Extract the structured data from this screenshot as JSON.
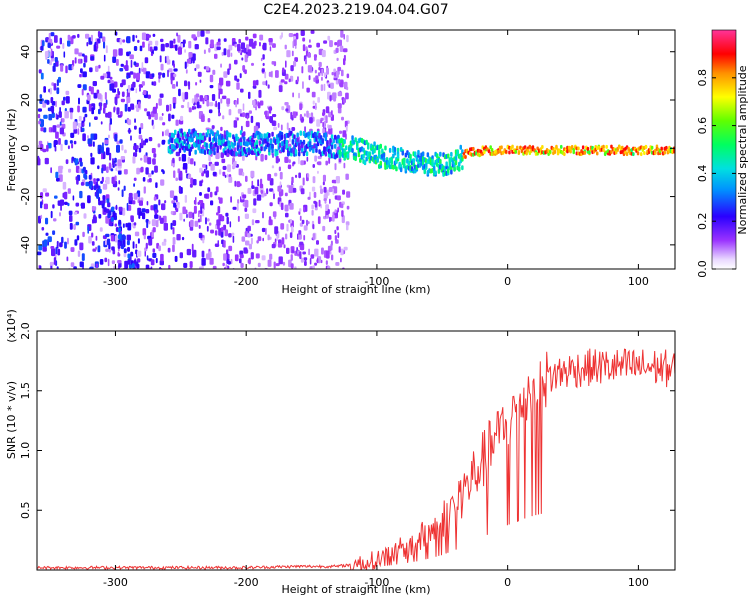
{
  "title": "C2E4.2023.219.04.04.G07",
  "colors": {
    "snr_line": "#ee3333",
    "spectrogram_low": "#cc99ff",
    "spectrogram_mid": "#33ddcc",
    "spectrogram_high": "#ff2200"
  },
  "chart_data": [
    {
      "type": "heatmap",
      "xlabel": "Height of straight line (km)",
      "ylabel": "Frequency (Hz)",
      "xlim": [
        -360,
        128
      ],
      "ylim": [
        -50,
        49
      ],
      "xticks": [
        -300,
        -200,
        -100,
        0,
        100
      ],
      "yticks": [
        -40,
        -20,
        0,
        20,
        40
      ],
      "colorbar": {
        "label": "Normalized spectral amplitude",
        "range": [
          0,
          1
        ],
        "ticks": [
          0.0,
          0.2,
          0.4,
          0.6,
          0.8
        ],
        "colormap": "rainbow"
      },
      "ridge_center_hz": [
        [
          -250,
          4
        ],
        [
          -200,
          3
        ],
        [
          -150,
          3
        ],
        [
          -120,
          1
        ],
        [
          -100,
          -2
        ],
        [
          -80,
          -4
        ],
        [
          -60,
          -6
        ],
        [
          -45,
          -5
        ],
        [
          -30,
          -1
        ],
        [
          -15,
          0
        ],
        [
          0,
          0
        ],
        [
          50,
          0
        ],
        [
          100,
          0
        ],
        [
          128,
          0
        ]
      ],
      "streak": [
        [
          -330,
          -4
        ],
        [
          -300,
          -30
        ],
        [
          -285,
          -50
        ]
      ],
      "noise_region_x": [
        -360,
        -123
      ]
    },
    {
      "type": "line",
      "xlabel": "Height of straight line (km)",
      "ylabel": "SNR (10 * v/v)",
      "y_multiplier": "(x10⁴)",
      "xlim": [
        -360,
        128
      ],
      "ylim": [
        0,
        2.0
      ],
      "xticks": [
        -300,
        -200,
        -100,
        0,
        100
      ],
      "yticks": [
        0.5,
        1.0,
        1.5,
        2.0
      ],
      "series": [
        {
          "values": [
            [
              -360,
              0.02
            ],
            [
              -300,
              0.02
            ],
            [
              -250,
              0.02
            ],
            [
              -200,
              0.02
            ],
            [
              -160,
              0.03
            ],
            [
              -130,
              0.03
            ],
            [
              -110,
              0.06
            ],
            [
              -100,
              0.09
            ],
            [
              -90,
              0.13
            ],
            [
              -80,
              0.18
            ],
            [
              -70,
              0.24
            ],
            [
              -60,
              0.32
            ],
            [
              -50,
              0.42
            ],
            [
              -40,
              0.56
            ],
            [
              -30,
              0.72
            ],
            [
              -20,
              0.9
            ],
            [
              -10,
              1.08
            ],
            [
              0,
              1.25
            ],
            [
              10,
              1.4
            ],
            [
              20,
              1.52
            ],
            [
              30,
              1.6
            ],
            [
              40,
              1.65
            ],
            [
              50,
              1.68
            ],
            [
              70,
              1.7
            ],
            [
              90,
              1.7
            ],
            [
              110,
              1.7
            ],
            [
              128,
              1.68
            ]
          ]
        }
      ]
    }
  ]
}
